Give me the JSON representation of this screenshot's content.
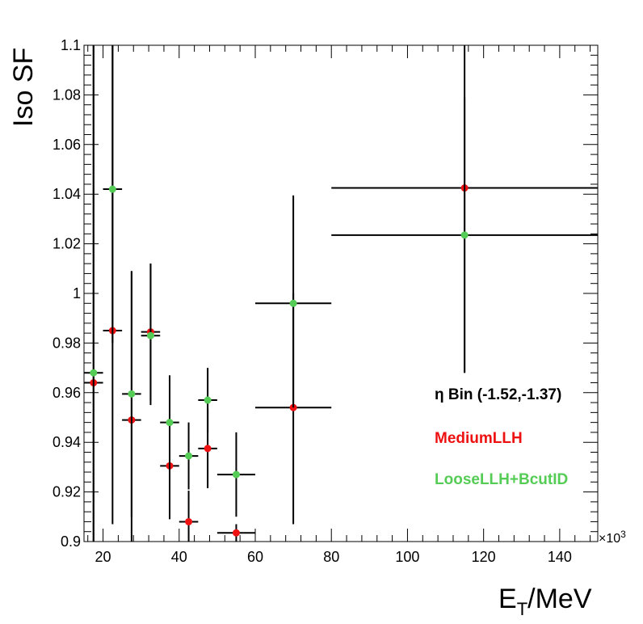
{
  "chart_data": {
    "type": "scatter",
    "ylabel": "Iso SF",
    "xlabel_main": "E",
    "xlabel_sub": "T",
    "xlabel_rest": "/MeV",
    "x_multiplier": "×10",
    "x_multiplier_exp": "3",
    "xlim": [
      15,
      150
    ],
    "ylim": [
      0.9,
      1.1
    ],
    "x_ticks": [
      20,
      40,
      60,
      80,
      100,
      120,
      140
    ],
    "x_tick_labels": [
      "20",
      "40",
      "60",
      "80",
      "100",
      "120",
      "140"
    ],
    "y_ticks": [
      0.9,
      0.92,
      0.94,
      0.96,
      0.98,
      1.0,
      1.02,
      1.04,
      1.06,
      1.08,
      1.1
    ],
    "y_tick_labels": [
      "0.9",
      "0.92",
      "0.94",
      "0.96",
      "0.98",
      "1",
      "1.02",
      "1.04",
      "1.06",
      "1.08",
      "1.1"
    ],
    "annotation": "η Bin (-1.52,-1.37)",
    "series": [
      {
        "name": "MediumLLH",
        "color": "#ee1111",
        "points": [
          {
            "x": 17.5,
            "y": 0.964,
            "xlo": 15,
            "xhi": 20,
            "ylo": 0.9,
            "yhi": 1.1
          },
          {
            "x": 22.5,
            "y": 0.985,
            "xlo": 20,
            "xhi": 25,
            "ylo": 0.907,
            "yhi": 1.1
          },
          {
            "x": 27.5,
            "y": 0.949,
            "xlo": 25,
            "xhi": 30,
            "ylo": 0.9,
            "yhi": 1.009
          },
          {
            "x": 32.5,
            "y": 0.9845,
            "xlo": 30,
            "xhi": 35,
            "ylo": 0.957,
            "yhi": 1.012
          },
          {
            "x": 37.5,
            "y": 0.9305,
            "xlo": 35,
            "xhi": 40,
            "ylo": 0.909,
            "yhi": 0.952
          },
          {
            "x": 42.5,
            "y": 0.908,
            "xlo": 40,
            "xhi": 45,
            "ylo": 0.9,
            "yhi": 0.9205
          },
          {
            "x": 47.5,
            "y": 0.9375,
            "xlo": 45,
            "xhi": 50,
            "ylo": 0.9215,
            "yhi": 0.9535
          },
          {
            "x": 55,
            "y": 0.9035,
            "xlo": 50,
            "xhi": 60,
            "ylo": 0.9,
            "yhi": 0.907
          },
          {
            "x": 70,
            "y": 0.954,
            "xlo": 60,
            "xhi": 80,
            "ylo": 0.907,
            "yhi": 1.0
          },
          {
            "x": 115,
            "y": 1.0425,
            "xlo": 80,
            "xhi": 150,
            "ylo": 0.968,
            "yhi": 1.1
          }
        ]
      },
      {
        "name": "LooseLLH+BcutID",
        "color": "#55cc55",
        "points": [
          {
            "x": 17.5,
            "y": 0.968,
            "xlo": 15,
            "xhi": 20,
            "ylo": 0.9,
            "yhi": 1.1
          },
          {
            "x": 22.5,
            "y": 1.042,
            "xlo": 20,
            "xhi": 25,
            "ylo": 0.98,
            "yhi": 1.1
          },
          {
            "x": 27.5,
            "y": 0.9595,
            "xlo": 25,
            "xhi": 30,
            "ylo": 0.91,
            "yhi": 1.009
          },
          {
            "x": 32.5,
            "y": 0.983,
            "xlo": 30,
            "xhi": 35,
            "ylo": 0.955,
            "yhi": 1.012
          },
          {
            "x": 37.5,
            "y": 0.948,
            "xlo": 35,
            "xhi": 40,
            "ylo": 0.929,
            "yhi": 0.967
          },
          {
            "x": 42.5,
            "y": 0.9345,
            "xlo": 40,
            "xhi": 45,
            "ylo": 0.921,
            "yhi": 0.948
          },
          {
            "x": 47.5,
            "y": 0.957,
            "xlo": 45,
            "xhi": 50,
            "ylo": 0.944,
            "yhi": 0.97
          },
          {
            "x": 55,
            "y": 0.927,
            "xlo": 50,
            "xhi": 60,
            "ylo": 0.91,
            "yhi": 0.944
          },
          {
            "x": 70,
            "y": 0.996,
            "xlo": 60,
            "xhi": 80,
            "ylo": 0.954,
            "yhi": 1.0395
          },
          {
            "x": 115,
            "y": 1.0235,
            "xlo": 80,
            "xhi": 150,
            "ylo": 0.968,
            "yhi": 1.079
          }
        ]
      }
    ],
    "grid": false
  }
}
